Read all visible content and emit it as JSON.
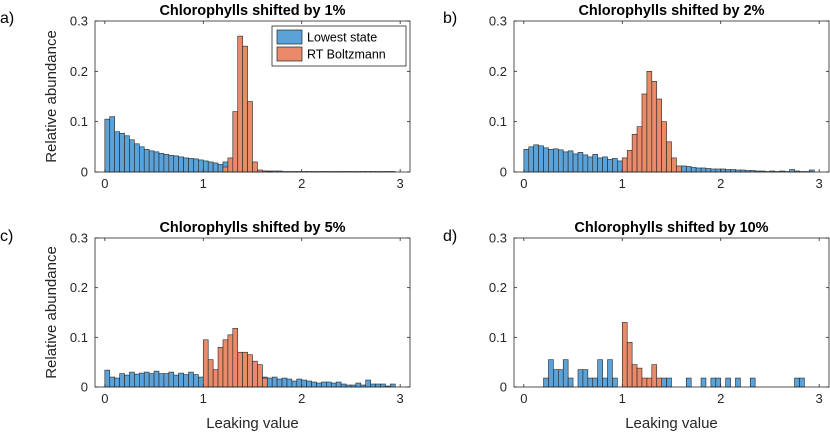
{
  "figure": {
    "xlabel": "Leaking value",
    "ylabel": "Relative abundance",
    "legend": {
      "entries": [
        "Lowest state",
        "RT Boltzmann"
      ],
      "placement": "top-right"
    },
    "colors": {
      "lowest": "#5aa2d8",
      "boltzmann": "#e98a68",
      "edge": "#262626"
    }
  },
  "chart_data": [
    {
      "type": "bar",
      "label": "a)",
      "title": "Chlorophylls shifted by 1%",
      "xlim": [
        -0.1,
        3.1
      ],
      "ylim": [
        0,
        0.3
      ],
      "xticks": [
        "0",
        "1",
        "2",
        "3"
      ],
      "yticks": [
        "0",
        "0.1",
        "0.2",
        "0.3"
      ],
      "bin_start": 0.0,
      "bin_width": 0.05,
      "series": [
        {
          "name": "Lowest state",
          "values": [
            0.105,
            0.11,
            0.08,
            0.077,
            0.072,
            0.064,
            0.056,
            0.05,
            0.045,
            0.042,
            0.04,
            0.037,
            0.035,
            0.033,
            0.032,
            0.03,
            0.028,
            0.027,
            0.026,
            0.024,
            0.022,
            0.02,
            0.018,
            0.015,
            0.02,
            0.018,
            0.01,
            0.006,
            0.004,
            0.004,
            0.003,
            0.003,
            0.002,
            0.002,
            0.002,
            0.002,
            0.001,
            0.001,
            0.001,
            0.001,
            0.001,
            0.001,
            0.001,
            0.001,
            0.001,
            0.001,
            0.001,
            0.001,
            0.001,
            0.001,
            0.001,
            0.001,
            0.001,
            0.001,
            0.001,
            0.001,
            0.001,
            0.001,
            0.001
          ]
        },
        {
          "name": "RT Boltzmann",
          "values": [
            0,
            0,
            0,
            0,
            0,
            0,
            0,
            0,
            0,
            0,
            0,
            0,
            0,
            0,
            0,
            0,
            0,
            0,
            0,
            0,
            0,
            0,
            0,
            0,
            0.01,
            0.028,
            0.12,
            0.27,
            0.25,
            0.14,
            0.02,
            0.004,
            0.002,
            0.001
          ]
        }
      ]
    },
    {
      "type": "bar",
      "label": "b)",
      "title": "Chlorophylls shifted by 2%",
      "xlim": [
        -0.1,
        3.1
      ],
      "ylim": [
        0,
        0.3
      ],
      "xticks": [
        "0",
        "1",
        "2",
        "3"
      ],
      "yticks": [
        "0",
        "0.1",
        "0.2",
        "0.3"
      ],
      "bin_start": 0.0,
      "bin_width": 0.05,
      "series": [
        {
          "name": "Lowest state",
          "values": [
            0.045,
            0.05,
            0.054,
            0.052,
            0.048,
            0.045,
            0.046,
            0.044,
            0.04,
            0.042,
            0.036,
            0.039,
            0.034,
            0.03,
            0.035,
            0.028,
            0.03,
            0.025,
            0.027,
            0.022,
            0.023,
            0.025,
            0.02,
            0.026,
            0.023,
            0.018,
            0.014,
            0.013,
            0.012,
            0.013,
            0.012,
            0.01,
            0.012,
            0.011,
            0.009,
            0.008,
            0.008,
            0.007,
            0.006,
            0.006,
            0.006,
            0.005,
            0.005,
            0.004,
            0.004,
            0.003,
            0.003,
            0.002,
            0.002,
            0.001,
            0.002,
            0.001,
            0.002,
            0.001,
            0.005,
            0.002,
            0.001,
            0.001,
            0.004
          ]
        },
        {
          "name": "RT Boltzmann",
          "values": [
            0,
            0,
            0,
            0,
            0,
            0,
            0,
            0,
            0,
            0,
            0,
            0,
            0,
            0,
            0,
            0,
            0,
            0,
            0,
            0,
            0.028,
            0.043,
            0.075,
            0.09,
            0.155,
            0.2,
            0.18,
            0.145,
            0.1,
            0.06,
            0.028,
            0.012
          ]
        }
      ]
    },
    {
      "type": "bar",
      "label": "c)",
      "title": "Chlorophylls shifted by 5%",
      "xlim": [
        -0.1,
        3.1
      ],
      "ylim": [
        0,
        0.3
      ],
      "xticks": [
        "0",
        "1",
        "2",
        "3"
      ],
      "yticks": [
        "0",
        "0.1",
        "0.2",
        "0.3"
      ],
      "bin_start": 0.0,
      "bin_width": 0.05,
      "series": [
        {
          "name": "Lowest state",
          "values": [
            0.034,
            0.02,
            0.018,
            0.027,
            0.024,
            0.03,
            0.026,
            0.028,
            0.03,
            0.027,
            0.032,
            0.027,
            0.027,
            0.03,
            0.024,
            0.028,
            0.025,
            0.03,
            0.025,
            0.02,
            0.022,
            0.018,
            0.02,
            0.016,
            0.014,
            0.012,
            0.015,
            0.018,
            0.02,
            0.02,
            0.022,
            0.035,
            0.02,
            0.018,
            0.02,
            0.016,
            0.018,
            0.016,
            0.012,
            0.016,
            0.014,
            0.012,
            0.01,
            0.008,
            0.01,
            0.01,
            0.008,
            0.01,
            0.006,
            0.004,
            0.004,
            0.008,
            0.004,
            0.014,
            0.006,
            0.006,
            0.006,
            0.002,
            0.006
          ]
        },
        {
          "name": "RT Boltzmann",
          "values": [
            0,
            0,
            0,
            0,
            0,
            0,
            0,
            0,
            0,
            0,
            0,
            0,
            0,
            0,
            0,
            0,
            0,
            0,
            0,
            0,
            0.095,
            0.055,
            0.035,
            0.08,
            0.095,
            0.105,
            0.118,
            0.07,
            0.07,
            0.065,
            0.052,
            0.045,
            0.018
          ]
        }
      ]
    },
    {
      "type": "bar",
      "label": "d)",
      "title": "Chlorophylls shifted by 10%",
      "xlim": [
        -0.1,
        3.1
      ],
      "ylim": [
        0,
        0.3
      ],
      "xticks": [
        "0",
        "1",
        "2",
        "3"
      ],
      "yticks": [
        "0",
        "0.1",
        "0.2",
        "0.3"
      ],
      "bin_start": 0.0,
      "bin_width": 0.05,
      "series": [
        {
          "name": "Lowest state",
          "values": [
            0,
            0,
            0,
            0,
            0.018,
            0.055,
            0.035,
            0.035,
            0.055,
            0.018,
            0,
            0.035,
            0.035,
            0.018,
            0.018,
            0.055,
            0.018,
            0.055,
            0.018,
            0,
            0,
            0,
            0,
            0,
            0,
            0,
            0,
            0,
            0.018,
            0.018,
            0,
            0,
            0,
            0.018,
            0,
            0,
            0.018,
            0,
            0.018,
            0.018,
            0,
            0.018,
            0,
            0.018,
            0,
            0,
            0.018,
            0,
            0,
            0,
            0,
            0,
            0,
            0,
            0,
            0.018,
            0.018
          ]
        },
        {
          "name": "RT Boltzmann",
          "values": [
            0,
            0,
            0,
            0,
            0,
            0,
            0,
            0,
            0,
            0,
            0,
            0,
            0,
            0,
            0,
            0,
            0,
            0,
            0,
            0,
            0.13,
            0.09,
            0.045,
            0.038,
            0.018,
            0.018,
            0.045,
            0.018
          ]
        }
      ]
    }
  ]
}
